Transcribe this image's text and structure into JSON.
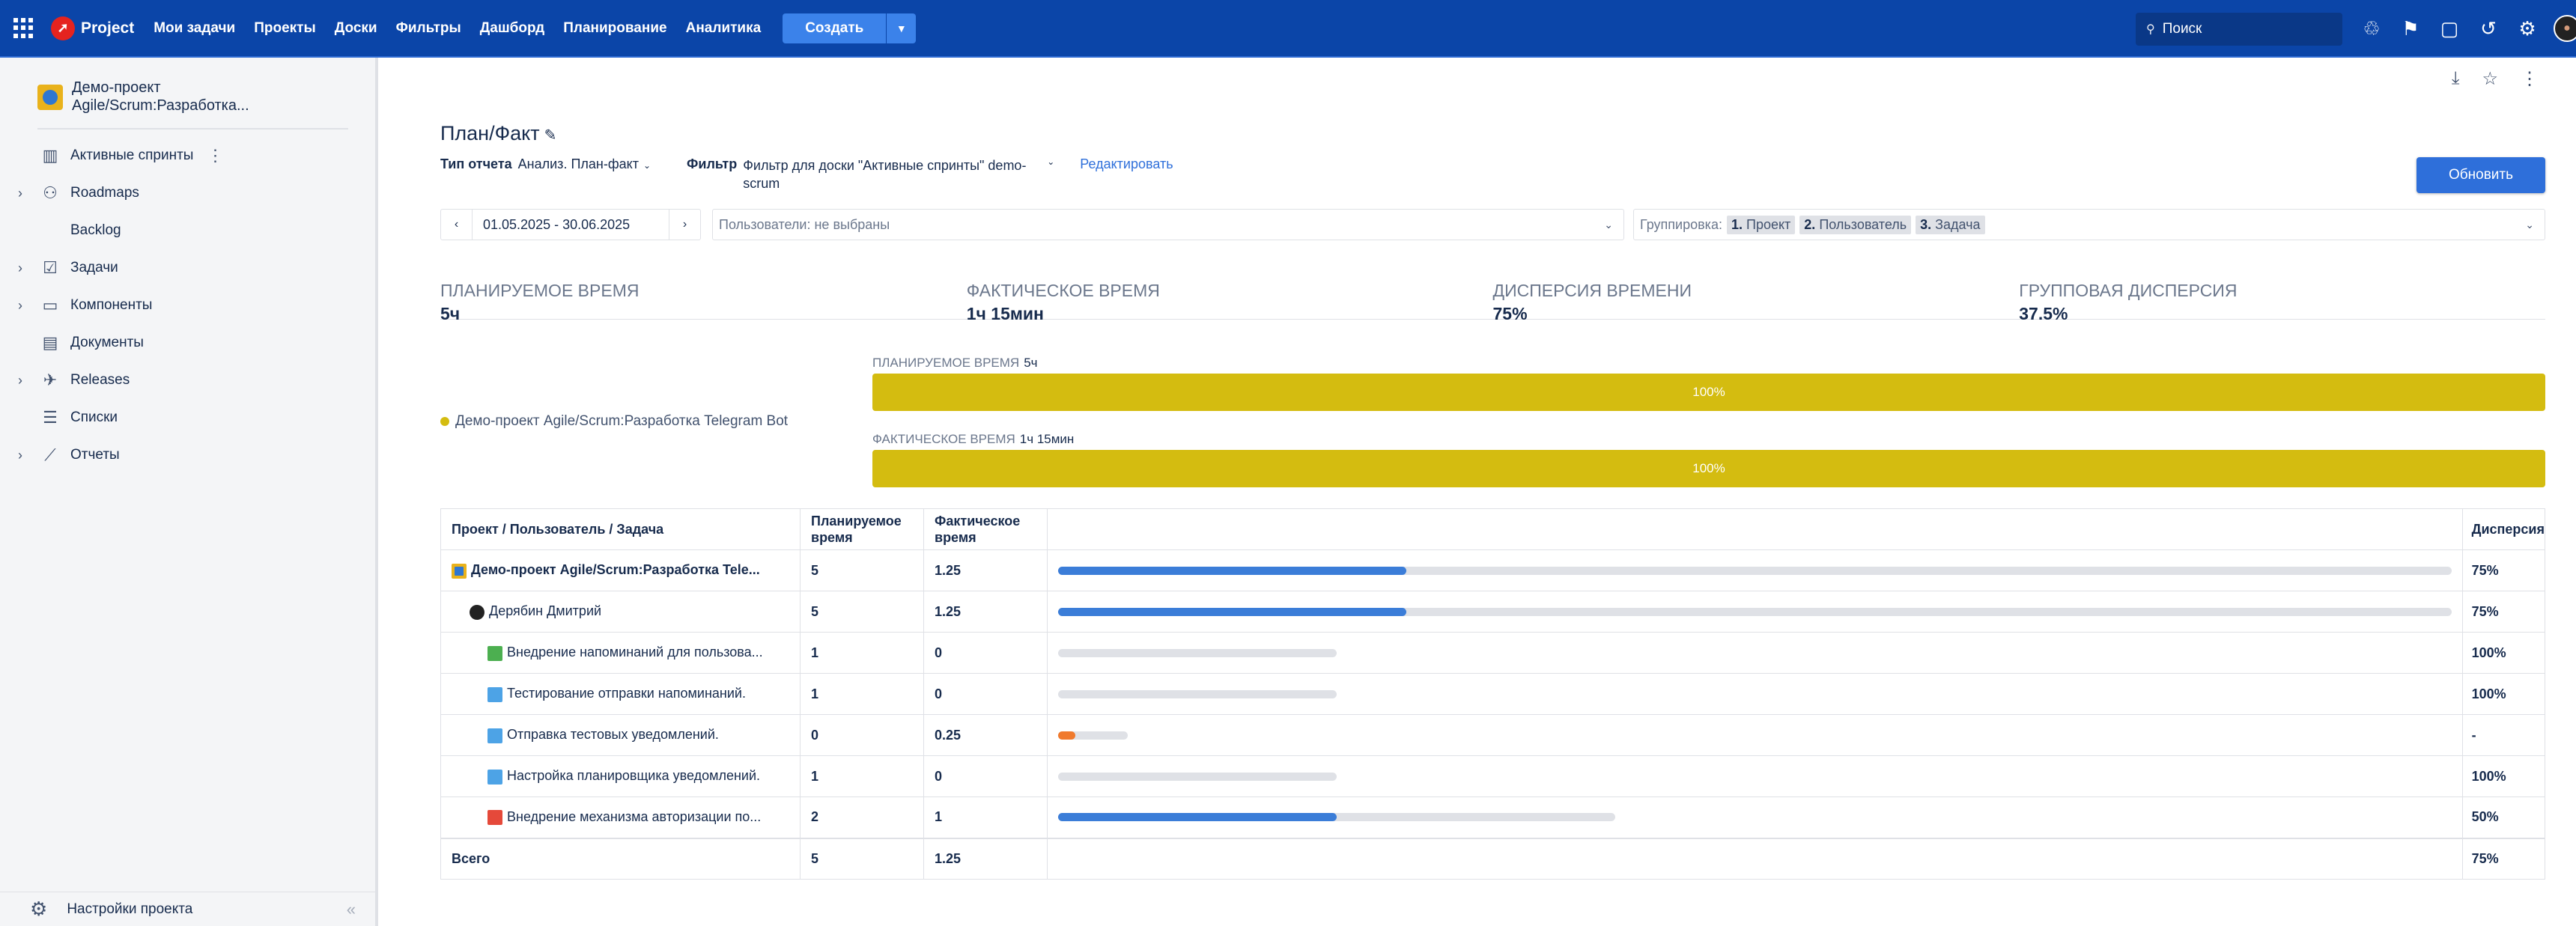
{
  "topbar": {
    "brand": "Project",
    "nav": [
      "Мои задачи",
      "Проекты",
      "Доски",
      "Фильтры",
      "Дашборд",
      "Планирование",
      "Аналитика"
    ],
    "create_label": "Создать",
    "search_placeholder": "Поиск"
  },
  "sidebar": {
    "project_name": "Демо-проект Agile/Scrum:Разработка...",
    "items": [
      {
        "label": "Активные спринты",
        "icon": "board-icon",
        "expandable": false
      },
      {
        "label": "Roadmaps",
        "icon": "roadmap-icon",
        "expandable": true
      },
      {
        "label": "Backlog",
        "icon": "backlog-icon",
        "expandable": false
      },
      {
        "label": "Задачи",
        "icon": "tasks-icon",
        "expandable": true
      },
      {
        "label": "Компоненты",
        "icon": "components-icon",
        "expandable": true
      },
      {
        "label": "Документы",
        "icon": "documents-icon",
        "expandable": false
      },
      {
        "label": "Releases",
        "icon": "releases-icon",
        "expandable": true
      },
      {
        "label": "Списки",
        "icon": "lists-icon",
        "expandable": false
      },
      {
        "label": "Отчеты",
        "icon": "reports-icon",
        "expandable": true
      }
    ],
    "settings_label": "Настройки проекта"
  },
  "report": {
    "title": "План/Факт",
    "type_label": "Тип отчета",
    "type_value": "Анализ. План-факт",
    "filter_label": "Фильтр",
    "filter_value": "Фильтр для доски \"Активные спринты\" demo-scrum",
    "edit_label": "Редактировать",
    "refresh_label": "Обновить",
    "date_range": "01.05.2025 - 30.06.2025",
    "users_placeholder": "Пользователи: не выбраны",
    "grouping_label": "Группировка:",
    "grouping_chips": [
      {
        "num": "1.",
        "label": "Проект"
      },
      {
        "num": "2.",
        "label": "Пользователь"
      },
      {
        "num": "3.",
        "label": "Задача"
      }
    ]
  },
  "stats": [
    {
      "label": "Планируемое время",
      "value": "5ч"
    },
    {
      "label": "Фактическое время",
      "value": "1ч 15мин"
    },
    {
      "label": "Дисперсия времени",
      "value": "75%"
    },
    {
      "label": "Групповая дисперсия",
      "value": "37.5%"
    }
  ],
  "summary_chart": {
    "legend": "Демо-проект Agile/Scrum:Разработка Telegram Bot",
    "legend_color": "#d4bc10",
    "planned_label": "Планируемое время",
    "planned_value": "5ч",
    "planned_pct": "100%",
    "actual_label": "Фактическое время",
    "actual_value": "1ч 15мин",
    "actual_pct": "100%"
  },
  "table": {
    "headers": {
      "name": "Проект / Пользователь / Задача",
      "planned": "Планируемое время",
      "actual": "Фактическое время",
      "dispersion": "Дисперсия"
    },
    "rows": [
      {
        "name": "Демо-проект Agile/Scrum:Разработка Tele...",
        "planned": "5",
        "actual": "1.25",
        "dispersion": "75%",
        "level": 0,
        "icon": "project-icon",
        "bold": true,
        "track": 1.0,
        "fill": 0.25,
        "fill_color": "#3b7dd8"
      },
      {
        "name": "Дерябин Дмитрий",
        "planned": "5",
        "actual": "1.25",
        "dispersion": "75%",
        "level": 1,
        "icon": "user-avatar",
        "bold": false,
        "track": 1.0,
        "fill": 0.25,
        "fill_color": "#3b7dd8"
      },
      {
        "name": "Внедрение напоминаний для пользова...",
        "planned": "1",
        "actual": "0",
        "dispersion": "100%",
        "level": 2,
        "icon": "story-icon",
        "bold": false,
        "track": 0.2,
        "fill": 0,
        "fill_color": "#3b7dd8"
      },
      {
        "name": "Тестирование отправки напоминаний.",
        "planned": "1",
        "actual": "0",
        "dispersion": "100%",
        "level": 2,
        "icon": "task-icon",
        "bold": false,
        "track": 0.2,
        "fill": 0,
        "fill_color": "#3b7dd8"
      },
      {
        "name": "Отправка тестовых уведомлений.",
        "planned": "0",
        "actual": "0.25",
        "dispersion": "-",
        "level": 2,
        "icon": "task-icon",
        "bold": false,
        "track": 0.05,
        "fill": 0.25,
        "fill_color": "#f07a2d"
      },
      {
        "name": "Настройка планировщика уведомлений.",
        "planned": "1",
        "actual": "0",
        "dispersion": "100%",
        "level": 2,
        "icon": "task-icon",
        "bold": false,
        "track": 0.2,
        "fill": 0,
        "fill_color": "#3b7dd8"
      },
      {
        "name": "Внедрение механизма авторизации по...",
        "planned": "2",
        "actual": "1",
        "dispersion": "50%",
        "level": 2,
        "icon": "bug-icon",
        "bold": false,
        "track": 0.4,
        "fill": 0.5,
        "fill_color": "#3b7dd8"
      }
    ],
    "total": {
      "name": "Всего",
      "planned": "5",
      "actual": "1.25",
      "dispersion": "75%"
    }
  }
}
